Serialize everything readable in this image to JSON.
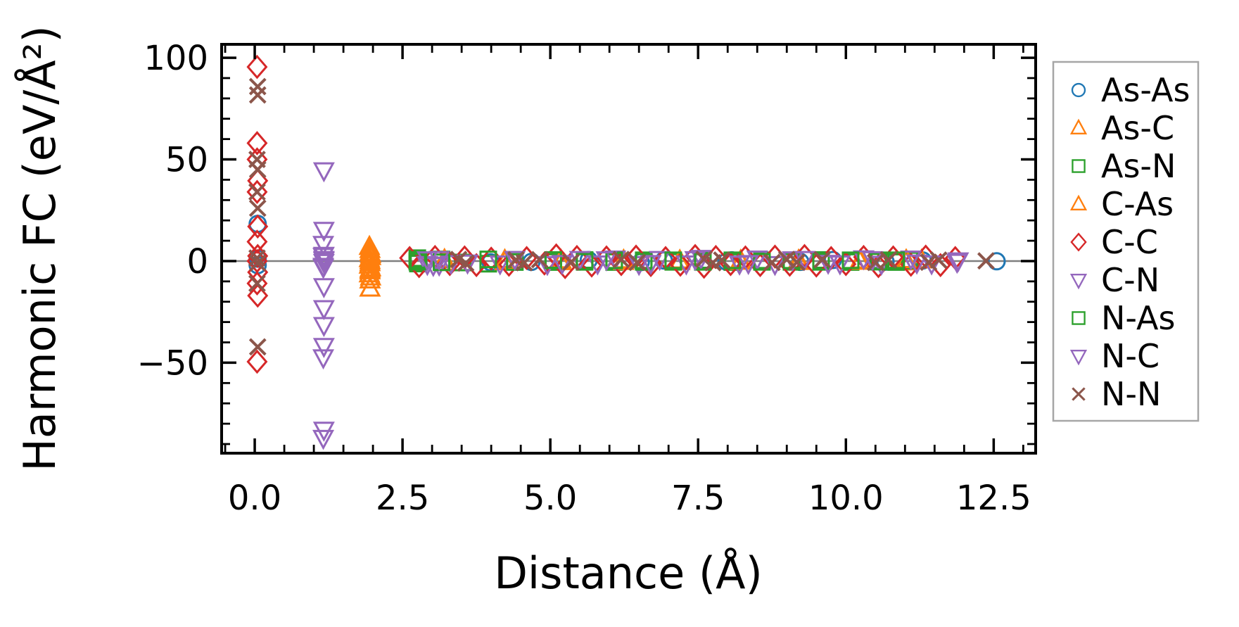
{
  "chart_data": {
    "type": "scatter",
    "title": "",
    "xlabel": "Distance (Å)",
    "ylabel": "Harmonic FC (eV/Å²)",
    "xlim": [
      -0.56,
      13.21
    ],
    "ylim": [
      -94.5,
      106.6
    ],
    "grid": false,
    "x_ticks": {
      "major": [
        0.0,
        2.5,
        5.0,
        7.5,
        10.0,
        12.5
      ],
      "labels": [
        "0.0",
        "2.5",
        "5.0",
        "7.5",
        "10.0",
        "12.5"
      ],
      "minor_step": 0.5
    },
    "y_ticks": {
      "major": [
        100,
        50,
        0,
        -50
      ],
      "labels": [
        "100",
        "50",
        "0",
        "−50"
      ],
      "minor_step": 10
    },
    "zero_line": {
      "y": 0,
      "color": "#7f7f7f"
    },
    "legend": {
      "position": "outside-right",
      "border_color": "#a6a6a6",
      "background": "#ffffff"
    },
    "axis_color": "#000000",
    "series": [
      {
        "name": "As-As",
        "marker": "circle",
        "color": "#1f77b4",
        "points": [
          [
            0.05,
            18.3
          ],
          [
            0.05,
            1.2
          ],
          [
            0.05,
            -2.0
          ],
          [
            3.99,
            -0.6
          ],
          [
            4.68,
            -0.4
          ],
          [
            5.65,
            0.5
          ],
          [
            6.53,
            -0.5
          ],
          [
            6.92,
            0.3
          ],
          [
            7.98,
            -0.3
          ],
          [
            8.07,
            0.4
          ],
          [
            9.23,
            -0.4
          ],
          [
            9.78,
            0.5
          ],
          [
            10.67,
            -0.3
          ],
          [
            11.3,
            0.3
          ],
          [
            12.55,
            -0.1
          ]
        ]
      },
      {
        "name": "As-C",
        "marker": "triangle-up",
        "color": "#ff7f0e",
        "points": [
          [
            1.94,
            7.0
          ],
          [
            1.95,
            4.0
          ],
          [
            1.96,
            2.0
          ],
          [
            1.95,
            0.0
          ],
          [
            1.94,
            -2.2
          ],
          [
            1.95,
            -5.0
          ],
          [
            1.96,
            -8.0
          ],
          [
            1.95,
            -13.5
          ],
          [
            3.21,
            -0.8
          ],
          [
            4.23,
            0.5
          ],
          [
            5.18,
            -0.5
          ],
          [
            6.24,
            0.4
          ],
          [
            7.19,
            -0.4
          ],
          [
            8.22,
            0.3
          ],
          [
            9.2,
            -0.4
          ],
          [
            10.24,
            0.3
          ],
          [
            11.02,
            -0.6
          ],
          [
            11.28,
            0.4
          ]
        ]
      },
      {
        "name": "As-N",
        "marker": "square",
        "color": "#2ca02c",
        "points": [
          [
            2.75,
            1.4
          ],
          [
            2.76,
            -1.2
          ],
          [
            3.16,
            0.8
          ],
          [
            3.52,
            -0.7
          ],
          [
            3.95,
            -1.3
          ],
          [
            4.4,
            0.6
          ],
          [
            5.05,
            -0.5
          ],
          [
            5.58,
            0.5
          ],
          [
            6.08,
            -0.5
          ],
          [
            6.58,
            0.4
          ],
          [
            7.08,
            -0.4
          ],
          [
            7.58,
            0.5
          ],
          [
            8.08,
            -0.5
          ],
          [
            8.58,
            0.4
          ],
          [
            9.08,
            -0.4
          ],
          [
            9.58,
            0.5
          ],
          [
            10.08,
            -0.5
          ],
          [
            10.55,
            0.4
          ],
          [
            10.85,
            -0.5
          ],
          [
            11.08,
            0.3
          ]
        ]
      },
      {
        "name": "C-As",
        "marker": "triangle-up",
        "color": "#ff7f0e",
        "points": [
          [
            1.95,
            5.5
          ],
          [
            1.96,
            3.0
          ],
          [
            1.94,
            1.0
          ],
          [
            1.95,
            -1.0
          ],
          [
            1.96,
            -3.5
          ],
          [
            1.95,
            -4.2
          ],
          [
            1.94,
            -6.5
          ],
          [
            1.95,
            -9.5
          ],
          [
            3.21,
            0.7
          ],
          [
            4.23,
            -0.5
          ],
          [
            5.18,
            0.4
          ],
          [
            6.24,
            -0.4
          ],
          [
            7.19,
            0.3
          ],
          [
            8.22,
            -0.3
          ],
          [
            9.2,
            0.4
          ],
          [
            10.24,
            -0.3
          ],
          [
            11.02,
            0.5
          ]
        ]
      },
      {
        "name": "C-C",
        "marker": "diamond",
        "color": "#d62728",
        "points": [
          [
            0.04,
            95.5
          ],
          [
            0.04,
            58.0
          ],
          [
            0.04,
            50.0
          ],
          [
            0.05,
            39.5
          ],
          [
            0.04,
            34.0
          ],
          [
            0.05,
            17.0
          ],
          [
            0.04,
            9.5
          ],
          [
            0.05,
            2.5
          ],
          [
            0.04,
            0.0
          ],
          [
            0.05,
            -5.5
          ],
          [
            0.04,
            -11.0
          ],
          [
            0.05,
            -17.0
          ],
          [
            0.04,
            -49.5
          ],
          [
            2.62,
            1.5
          ],
          [
            2.78,
            -2.5
          ],
          [
            3.05,
            2.0
          ],
          [
            3.3,
            -1.5
          ],
          [
            3.55,
            1.8
          ],
          [
            3.75,
            -2.0
          ],
          [
            4.0,
            1.2
          ],
          [
            4.3,
            -1.8
          ],
          [
            4.6,
            1.5
          ],
          [
            4.9,
            -1.2
          ],
          [
            5.1,
            2.8
          ],
          [
            5.25,
            -3.0
          ],
          [
            5.45,
            2.0
          ],
          [
            5.7,
            -2.2
          ],
          [
            5.95,
            1.8
          ],
          [
            6.2,
            -1.5
          ],
          [
            6.45,
            2.2
          ],
          [
            6.7,
            -2.0
          ],
          [
            6.95,
            1.5
          ],
          [
            7.2,
            -1.8
          ],
          [
            7.45,
            2.5
          ],
          [
            7.6,
            -2.8
          ],
          [
            7.8,
            2.0
          ],
          [
            8.05,
            -1.5
          ],
          [
            8.3,
            1.8
          ],
          [
            8.55,
            -2.0
          ],
          [
            8.8,
            2.2
          ],
          [
            9.05,
            -1.8
          ],
          [
            9.3,
            2.5
          ],
          [
            9.5,
            -2.2
          ],
          [
            9.75,
            1.5
          ],
          [
            10.0,
            -1.5
          ],
          [
            10.3,
            2.0
          ],
          [
            10.55,
            -2.5
          ],
          [
            10.8,
            1.8
          ],
          [
            11.1,
            -1.8
          ],
          [
            11.35,
            2.2
          ],
          [
            11.6,
            -2.0
          ],
          [
            11.85,
            1.5
          ]
        ]
      },
      {
        "name": "C-N",
        "marker": "triangle-down",
        "color": "#9467bd",
        "points": [
          [
            1.17,
            44.6
          ],
          [
            1.17,
            15.3
          ],
          [
            1.16,
            8.4
          ],
          [
            1.17,
            3.0
          ],
          [
            1.17,
            0.5
          ],
          [
            1.16,
            -2.4
          ],
          [
            1.17,
            -12.4
          ],
          [
            1.17,
            -31.5
          ],
          [
            1.16,
            -47.4
          ],
          [
            1.17,
            -83.0
          ],
          [
            2.92,
            -1.5
          ],
          [
            3.02,
            -2.0
          ],
          [
            3.12,
            -1.8
          ],
          [
            3.32,
            -1.0
          ],
          [
            4.15,
            -1.2
          ],
          [
            4.95,
            -1.5
          ],
          [
            5.5,
            1.0
          ],
          [
            5.8,
            -1.2
          ],
          [
            6.1,
            1.2
          ],
          [
            6.5,
            -1.5
          ],
          [
            6.85,
            1.0
          ],
          [
            7.3,
            -1.2
          ],
          [
            7.55,
            1.5
          ],
          [
            8.2,
            -1.3
          ],
          [
            8.5,
            1.2
          ],
          [
            8.8,
            -1.5
          ],
          [
            9.3,
            1.0
          ],
          [
            9.9,
            -1.2
          ],
          [
            10.3,
            1.3
          ],
          [
            10.6,
            -1.4
          ],
          [
            11.1,
            1.2
          ],
          [
            11.45,
            -1.2
          ],
          [
            11.9,
            0.3
          ]
        ]
      },
      {
        "name": "N-As",
        "marker": "square",
        "color": "#2ca02c",
        "points": [
          [
            2.75,
            -0.3
          ],
          [
            2.77,
            0.5
          ],
          [
            3.16,
            -0.6
          ],
          [
            3.95,
            0.8
          ],
          [
            4.4,
            -0.5
          ],
          [
            5.05,
            0.5
          ],
          [
            5.58,
            -0.4
          ],
          [
            6.08,
            0.4
          ],
          [
            6.58,
            -0.4
          ],
          [
            7.08,
            0.4
          ],
          [
            7.58,
            -0.4
          ],
          [
            8.08,
            0.4
          ],
          [
            8.58,
            -0.4
          ],
          [
            9.08,
            0.4
          ],
          [
            9.58,
            -0.4
          ],
          [
            10.08,
            0.4
          ],
          [
            10.55,
            -0.3
          ],
          [
            10.85,
            0.4
          ]
        ]
      },
      {
        "name": "N-C",
        "marker": "triangle-down",
        "color": "#9467bd",
        "points": [
          [
            1.16,
            2.5
          ],
          [
            1.17,
            1.0
          ],
          [
            1.17,
            -0.5
          ],
          [
            1.16,
            -3.0
          ],
          [
            1.17,
            -23.2
          ],
          [
            1.17,
            -41.8
          ],
          [
            1.16,
            -87.0
          ],
          [
            2.92,
            0.8
          ],
          [
            3.12,
            1.0
          ],
          [
            3.6,
            -0.8
          ],
          [
            4.4,
            1.0
          ],
          [
            5.2,
            -1.0
          ],
          [
            5.95,
            0.8
          ],
          [
            6.7,
            -1.0
          ],
          [
            7.45,
            0.9
          ],
          [
            8.35,
            -1.0
          ],
          [
            9.1,
            0.8
          ],
          [
            9.7,
            -0.9
          ],
          [
            10.45,
            0.9
          ],
          [
            11.2,
            -0.8
          ],
          [
            11.88,
            -0.4
          ]
        ]
      },
      {
        "name": "N-N",
        "marker": "x",
        "color": "#8c564b",
        "points": [
          [
            0.05,
            85.8
          ],
          [
            0.05,
            81.7
          ],
          [
            0.04,
            50.0
          ],
          [
            0.05,
            45.0
          ],
          [
            0.04,
            34.0
          ],
          [
            0.05,
            26.0
          ],
          [
            0.04,
            1.5
          ],
          [
            0.05,
            -1.0
          ],
          [
            0.04,
            -11.0
          ],
          [
            0.05,
            -42.2
          ],
          [
            3.45,
            0.8
          ],
          [
            3.57,
            -1.0
          ],
          [
            4.42,
            0.6
          ],
          [
            4.56,
            -0.8
          ],
          [
            4.82,
            0.7
          ],
          [
            5.35,
            -0.6
          ],
          [
            6.2,
            0.8
          ],
          [
            6.47,
            -0.7
          ],
          [
            7.6,
            0.9
          ],
          [
            7.75,
            -0.8
          ],
          [
            7.9,
            0.5
          ],
          [
            8.75,
            -0.7
          ],
          [
            9.0,
            0.8
          ],
          [
            9.17,
            -0.6
          ],
          [
            9.6,
            0.7
          ],
          [
            10.5,
            -0.7
          ],
          [
            10.72,
            0.6
          ],
          [
            11.4,
            -0.6
          ],
          [
            11.57,
            0.5
          ],
          [
            12.37,
            0.1
          ]
        ]
      }
    ]
  }
}
